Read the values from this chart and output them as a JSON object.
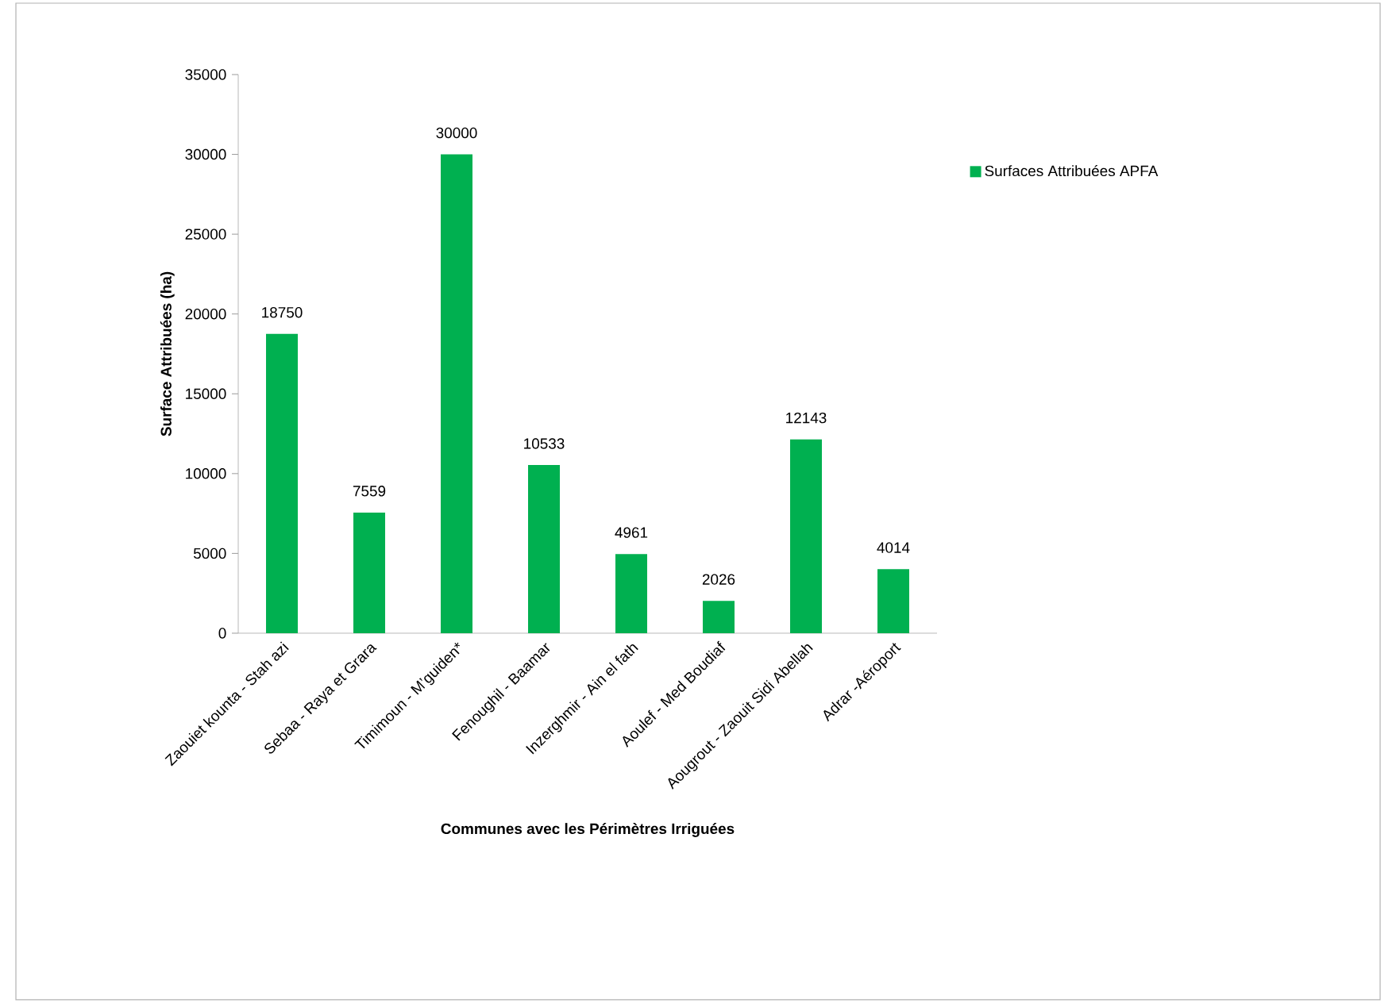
{
  "chart_data": {
    "type": "bar",
    "xlabel": "Communes avec les Périmètres  Irriguées",
    "ylabel": "Surface Attribuées (ha)",
    "categories": [
      "Zaouiet kounta - Stah azi",
      "Sebaa - Raya et Grara",
      "Timimoun - M’guiden*",
      "Fenoughil - Baamar",
      "Inzerghmir - Ain el fath",
      "Aoulef - Med Boudiaf",
      "Aougrout - Zaouit Sidi Abellah",
      "Adrar -Aéroport"
    ],
    "series": [
      {
        "name": "Surfaces Attribuées APFA",
        "color": "#00b050",
        "values": [
          18750,
          7559,
          30000,
          10533,
          4961,
          2026,
          12143,
          4014
        ]
      }
    ],
    "ylim": [
      0,
      35000
    ],
    "yticks": [
      0,
      5000,
      10000,
      15000,
      20000,
      25000,
      30000,
      35000
    ],
    "data_labels": true,
    "grid": false,
    "legend": "right"
  }
}
